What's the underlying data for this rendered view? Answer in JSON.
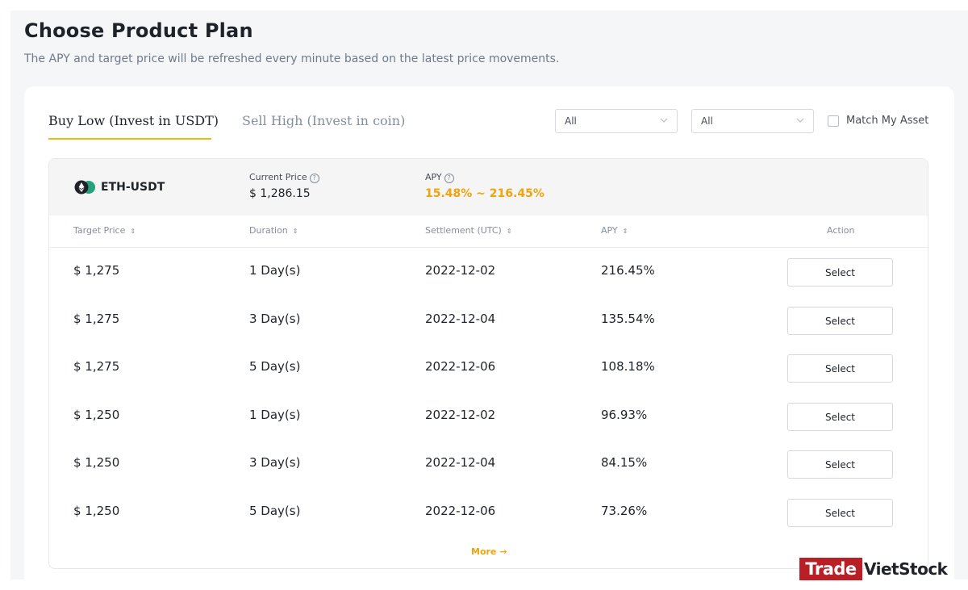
{
  "page": {
    "title": "Choose Product Plan",
    "subtitle": "The APY and target price will be refreshed every minute based on the latest price movements."
  },
  "tabs": [
    {
      "label": "Buy Low (Invest in USDT)",
      "active": true
    },
    {
      "label": "Sell High (Invest in coin)",
      "active": false
    }
  ],
  "filters": {
    "select1": "All",
    "select2": "All",
    "match_label": "Match My Asset",
    "match_checked": false
  },
  "pair": {
    "name": "ETH-USDT",
    "current_price_label": "Current Price",
    "current_price": "$ 1,286.15",
    "apy_label": "APY",
    "apy_range": "15.48% ~ 216.45%"
  },
  "columns": {
    "target_price": "Target Price",
    "duration": "Duration",
    "settlement": "Settlement (UTC)",
    "apy": "APY",
    "action": "Action"
  },
  "rows": [
    {
      "target": "$ 1,275",
      "duration": "1 Day(s)",
      "settlement": "2022-12-02",
      "apy": "216.45%",
      "action": "Select"
    },
    {
      "target": "$ 1,275",
      "duration": "3 Day(s)",
      "settlement": "2022-12-04",
      "apy": "135.54%",
      "action": "Select"
    },
    {
      "target": "$ 1,275",
      "duration": "5 Day(s)",
      "settlement": "2022-12-06",
      "apy": "108.18%",
      "action": "Select"
    },
    {
      "target": "$ 1,250",
      "duration": "1 Day(s)",
      "settlement": "2022-12-02",
      "apy": "96.93%",
      "action": "Select"
    },
    {
      "target": "$ 1,250",
      "duration": "3 Day(s)",
      "settlement": "2022-12-04",
      "apy": "84.15%",
      "action": "Select"
    },
    {
      "target": "$ 1,250",
      "duration": "5 Day(s)",
      "settlement": "2022-12-06",
      "apy": "73.26%",
      "action": "Select"
    }
  ],
  "more": {
    "label": "More",
    "arrow": "→"
  },
  "watermark": {
    "brand": "Trade",
    "name": "VietStock"
  },
  "colors": {
    "accent": "#f0b90b",
    "apy": "#f0a30a",
    "watermark_red": "#b91f24"
  }
}
